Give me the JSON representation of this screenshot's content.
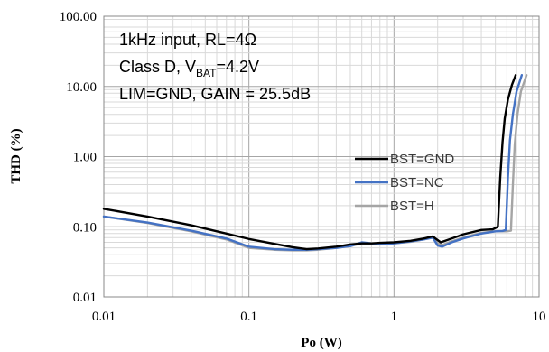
{
  "chart_data": {
    "type": "line",
    "title": "",
    "xlabel": "Po (W)",
    "ylabel": "THD (%)",
    "x_scale": "log",
    "y_scale": "log",
    "xlim": [
      0.01,
      10
    ],
    "ylim": [
      0.01,
      100
    ],
    "x_tick_labels": [
      "0.01",
      "0.1",
      "1",
      "10"
    ],
    "y_tick_labels": [
      "0.01",
      "0.10",
      "1.00",
      "10.00",
      "100.00"
    ],
    "grid": true,
    "legend_position": "center-right",
    "annotations": {
      "line1": "1kHz input, RL=4Ω",
      "line2_prefix": "Class D, V",
      "line2_sub": "BAT",
      "line2_suffix": "=4.2V",
      "line3": "LIM=GND, GAIN = 25.5dB"
    },
    "series": [
      {
        "name": "BST=GND",
        "color": "#000000",
        "x": [
          0.01,
          0.02,
          0.04,
          0.07,
          0.1,
          0.15,
          0.2,
          0.25,
          0.3,
          0.4,
          0.5,
          0.6,
          0.7,
          0.8,
          1.0,
          1.3,
          1.6,
          1.85,
          1.95,
          2.1,
          2.5,
          3.0,
          4.0,
          4.8,
          5.2,
          5.4,
          5.6,
          5.8,
          6.1,
          6.5,
          6.9
        ],
        "y": [
          0.18,
          0.14,
          0.105,
          0.08,
          0.067,
          0.057,
          0.051,
          0.048,
          0.049,
          0.052,
          0.056,
          0.058,
          0.058,
          0.059,
          0.06,
          0.063,
          0.068,
          0.073,
          0.067,
          0.06,
          0.068,
          0.078,
          0.09,
          0.092,
          0.1,
          0.5,
          1.6,
          3.5,
          6.5,
          10.5,
          14.5
        ]
      },
      {
        "name": "BST=NC",
        "color": "#4472c4",
        "x": [
          0.01,
          0.02,
          0.04,
          0.07,
          0.1,
          0.15,
          0.2,
          0.25,
          0.3,
          0.4,
          0.5,
          0.6,
          0.7,
          0.8,
          1.0,
          1.3,
          1.6,
          1.85,
          2.0,
          2.15,
          2.5,
          3.0,
          4.0,
          5.0,
          5.6,
          5.9,
          6.1,
          6.3,
          6.6,
          7.0,
          7.6
        ],
        "y": [
          0.14,
          0.115,
          0.088,
          0.068,
          0.052,
          0.048,
          0.047,
          0.047,
          0.048,
          0.05,
          0.053,
          0.06,
          0.058,
          0.056,
          0.058,
          0.062,
          0.066,
          0.07,
          0.054,
          0.052,
          0.06,
          0.068,
          0.08,
          0.086,
          0.087,
          0.09,
          0.5,
          1.7,
          4.0,
          8.5,
          14.5
        ]
      },
      {
        "name": "BST=H",
        "color": "#a5a5a5",
        "x": [
          0.01,
          0.02,
          0.04,
          0.07,
          0.1,
          0.15,
          0.2,
          0.25,
          0.3,
          0.4,
          0.5,
          0.6,
          0.7,
          0.8,
          1.0,
          1.3,
          1.6,
          1.85,
          2.0,
          2.15,
          2.5,
          3.0,
          4.0,
          5.0,
          6.0,
          6.4,
          6.6,
          6.8,
          7.1,
          7.5,
          8.2
        ],
        "y": [
          0.14,
          0.113,
          0.086,
          0.066,
          0.05,
          0.047,
          0.046,
          0.046,
          0.047,
          0.05,
          0.053,
          0.058,
          0.057,
          0.056,
          0.058,
          0.061,
          0.066,
          0.072,
          0.058,
          0.055,
          0.062,
          0.07,
          0.082,
          0.086,
          0.086,
          0.088,
          0.4,
          1.5,
          4.0,
          8.5,
          14.5
        ]
      }
    ]
  }
}
